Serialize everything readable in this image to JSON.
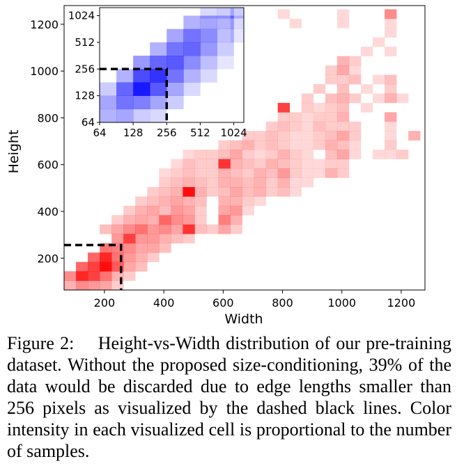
{
  "chart_data": {
    "type": "heatmap",
    "main": {
      "xlabel": "Width",
      "ylabel": "Height",
      "xlim": [
        64,
        1280
      ],
      "ylim": [
        64,
        1280
      ],
      "xticks": [
        200,
        400,
        600,
        800,
        1000,
        1200
      ],
      "yticks": [
        200,
        400,
        600,
        800,
        1000,
        1200
      ],
      "bin_size": 40,
      "cutoff": 256,
      "colormap_color": "#ff0000",
      "cells": [
        [
          84,
          84,
          0.3
        ],
        [
          124,
          84,
          0.45
        ],
        [
          164,
          84,
          0.4
        ],
        [
          204,
          84,
          0.35
        ],
        [
          244,
          84,
          0.2
        ],
        [
          84,
          124,
          0.45
        ],
        [
          124,
          124,
          0.85
        ],
        [
          164,
          124,
          0.75
        ],
        [
          204,
          124,
          0.55
        ],
        [
          244,
          124,
          0.3
        ],
        [
          284,
          124,
          0.2
        ],
        [
          124,
          164,
          0.6
        ],
        [
          164,
          164,
          0.75
        ],
        [
          204,
          164,
          0.95
        ],
        [
          244,
          164,
          0.65
        ],
        [
          284,
          164,
          0.35
        ],
        [
          324,
          164,
          0.25
        ],
        [
          164,
          204,
          0.6
        ],
        [
          204,
          204,
          0.85
        ],
        [
          244,
          204,
          0.55
        ],
        [
          284,
          204,
          0.4
        ],
        [
          324,
          204,
          0.3
        ],
        [
          364,
          204,
          0.2
        ],
        [
          204,
          244,
          0.55
        ],
        [
          244,
          244,
          0.5
        ],
        [
          284,
          244,
          0.45
        ],
        [
          324,
          244,
          0.35
        ],
        [
          364,
          244,
          0.35
        ],
        [
          404,
          244,
          0.25
        ],
        [
          244,
          284,
          0.4
        ],
        [
          284,
          284,
          0.75
        ],
        [
          324,
          284,
          0.4
        ],
        [
          364,
          284,
          0.4
        ],
        [
          404,
          284,
          0.3
        ],
        [
          444,
          284,
          0.25
        ],
        [
          484,
          284,
          0.2
        ],
        [
          204,
          324,
          0.25
        ],
        [
          244,
          324,
          0.35
        ],
        [
          284,
          324,
          0.45
        ],
        [
          324,
          324,
          0.55
        ],
        [
          364,
          324,
          0.4
        ],
        [
          404,
          324,
          0.45
        ],
        [
          444,
          324,
          0.35
        ],
        [
          484,
          324,
          0.8
        ],
        [
          524,
          324,
          0.25
        ],
        [
          564,
          324,
          0.2
        ],
        [
          604,
          324,
          0.35
        ],
        [
          644,
          324,
          0.2
        ],
        [
          244,
          364,
          0.2
        ],
        [
          284,
          364,
          0.3
        ],
        [
          324,
          364,
          0.35
        ],
        [
          364,
          364,
          0.3
        ],
        [
          404,
          364,
          0.6
        ],
        [
          444,
          364,
          0.45
        ],
        [
          484,
          364,
          0.4
        ],
        [
          524,
          364,
          0.2
        ],
        [
          604,
          364,
          0.5
        ],
        [
          644,
          364,
          0.3
        ],
        [
          284,
          404,
          0.2
        ],
        [
          324,
          404,
          0.3
        ],
        [
          364,
          404,
          0.35
        ],
        [
          404,
          404,
          0.25
        ],
        [
          444,
          404,
          0.4
        ],
        [
          484,
          404,
          0.35
        ],
        [
          524,
          404,
          0.2
        ],
        [
          604,
          404,
          0.35
        ],
        [
          644,
          404,
          0.4
        ],
        [
          684,
          404,
          0.15
        ],
        [
          324,
          444,
          0.2
        ],
        [
          364,
          444,
          0.25
        ],
        [
          404,
          444,
          0.3
        ],
        [
          444,
          444,
          0.35
        ],
        [
          484,
          444,
          0.3
        ],
        [
          524,
          444,
          0.25
        ],
        [
          604,
          444,
          0.3
        ],
        [
          644,
          444,
          0.3
        ],
        [
          684,
          444,
          0.2
        ],
        [
          724,
          444,
          0.15
        ],
        [
          364,
          484,
          0.2
        ],
        [
          404,
          484,
          0.25
        ],
        [
          444,
          484,
          0.3
        ],
        [
          484,
          484,
          0.95
        ],
        [
          524,
          484,
          0.3
        ],
        [
          564,
          484,
          0.2
        ],
        [
          604,
          484,
          0.25
        ],
        [
          644,
          484,
          0.35
        ],
        [
          684,
          484,
          0.25
        ],
        [
          724,
          484,
          0.3
        ],
        [
          764,
          484,
          0.2
        ],
        [
          804,
          484,
          0.25
        ],
        [
          844,
          484,
          0.15
        ],
        [
          404,
          524,
          0.2
        ],
        [
          444,
          524,
          0.25
        ],
        [
          484,
          524,
          0.3
        ],
        [
          524,
          524,
          0.25
        ],
        [
          564,
          524,
          0.2
        ],
        [
          604,
          524,
          0.3
        ],
        [
          644,
          524,
          0.3
        ],
        [
          684,
          524,
          0.25
        ],
        [
          724,
          524,
          0.3
        ],
        [
          764,
          524,
          0.2
        ],
        [
          804,
          524,
          0.3
        ],
        [
          844,
          524,
          0.15
        ],
        [
          884,
          524,
          0.15
        ],
        [
          404,
          564,
          0.15
        ],
        [
          444,
          564,
          0.2
        ],
        [
          484,
          564,
          0.25
        ],
        [
          524,
          564,
          0.2
        ],
        [
          564,
          564,
          0.2
        ],
        [
          604,
          564,
          0.3
        ],
        [
          644,
          564,
          0.25
        ],
        [
          684,
          564,
          0.2
        ],
        [
          724,
          564,
          0.3
        ],
        [
          764,
          564,
          0.25
        ],
        [
          804,
          564,
          0.4
        ],
        [
          844,
          564,
          0.2
        ],
        [
          884,
          564,
          0.15
        ],
        [
          924,
          564,
          0.15
        ],
        [
          964,
          564,
          0.3
        ],
        [
          1004,
          564,
          0.2
        ],
        [
          444,
          604,
          0.15
        ],
        [
          484,
          604,
          0.25
        ],
        [
          524,
          604,
          0.2
        ],
        [
          564,
          604,
          0.2
        ],
        [
          604,
          604,
          0.8
        ],
        [
          644,
          604,
          0.3
        ],
        [
          684,
          604,
          0.25
        ],
        [
          724,
          604,
          0.2
        ],
        [
          764,
          604,
          0.3
        ],
        [
          804,
          604,
          0.25
        ],
        [
          844,
          604,
          0.2
        ],
        [
          884,
          604,
          0.15
        ],
        [
          924,
          604,
          0.15
        ],
        [
          964,
          604,
          0.2
        ],
        [
          1004,
          604,
          0.2
        ],
        [
          484,
          644,
          0.15
        ],
        [
          524,
          644,
          0.2
        ],
        [
          564,
          644,
          0.2
        ],
        [
          604,
          644,
          0.25
        ],
        [
          644,
          644,
          0.35
        ],
        [
          684,
          644,
          0.2
        ],
        [
          724,
          644,
          0.15
        ],
        [
          764,
          644,
          0.2
        ],
        [
          804,
          644,
          0.3
        ],
        [
          844,
          644,
          0.2
        ],
        [
          884,
          644,
          0.15
        ],
        [
          964,
          644,
          0.25
        ],
        [
          1004,
          644,
          0.35
        ],
        [
          1044,
          644,
          0.15
        ],
        [
          1124,
          644,
          0.15
        ],
        [
          1164,
          644,
          0.15
        ],
        [
          1204,
          644,
          0.2
        ],
        [
          604,
          684,
          0.2
        ],
        [
          644,
          684,
          0.25
        ],
        [
          684,
          684,
          0.3
        ],
        [
          724,
          684,
          0.2
        ],
        [
          764,
          684,
          0.25
        ],
        [
          804,
          684,
          0.2
        ],
        [
          844,
          684,
          0.15
        ],
        [
          884,
          684,
          0.15
        ],
        [
          924,
          684,
          0.2
        ],
        [
          964,
          684,
          0.3
        ],
        [
          1004,
          684,
          0.25
        ],
        [
          1044,
          684,
          0.15
        ],
        [
          1164,
          684,
          0.2
        ],
        [
          684,
          724,
          0.2
        ],
        [
          724,
          724,
          0.2
        ],
        [
          764,
          724,
          0.25
        ],
        [
          804,
          724,
          0.2
        ],
        [
          844,
          724,
          0.15
        ],
        [
          884,
          724,
          0.15
        ],
        [
          924,
          724,
          0.2
        ],
        [
          964,
          724,
          0.25
        ],
        [
          1004,
          724,
          0.35
        ],
        [
          1044,
          724,
          0.2
        ],
        [
          1164,
          724,
          0.15
        ],
        [
          1244,
          724,
          0.3
        ],
        [
          764,
          764,
          0.2
        ],
        [
          804,
          764,
          0.25
        ],
        [
          844,
          764,
          0.2
        ],
        [
          884,
          764,
          0.15
        ],
        [
          924,
          764,
          0.25
        ],
        [
          964,
          764,
          0.2
        ],
        [
          1004,
          764,
          0.2
        ],
        [
          1044,
          764,
          0.2
        ],
        [
          1164,
          764,
          0.15
        ],
        [
          804,
          804,
          0.2
        ],
        [
          844,
          804,
          0.2
        ],
        [
          884,
          804,
          0.15
        ],
        [
          924,
          804,
          0.2
        ],
        [
          964,
          804,
          0.2
        ],
        [
          1004,
          804,
          0.3
        ],
        [
          1164,
          804,
          0.35
        ],
        [
          804,
          844,
          0.75
        ],
        [
          884,
          844,
          0.2
        ],
        [
          924,
          844,
          0.15
        ],
        [
          964,
          844,
          0.2
        ],
        [
          1004,
          844,
          0.25
        ],
        [
          1084,
          844,
          0.15
        ],
        [
          884,
          884,
          0.2
        ],
        [
          964,
          884,
          0.25
        ],
        [
          1004,
          884,
          0.3
        ],
        [
          1044,
          884,
          0.2
        ],
        [
          1124,
          884,
          0.15
        ],
        [
          1164,
          884,
          0.3
        ],
        [
          1204,
          884,
          0.15
        ],
        [
          924,
          924,
          0.2
        ],
        [
          1004,
          924,
          0.25
        ],
        [
          1084,
          924,
          0.15
        ],
        [
          1164,
          924,
          0.2
        ],
        [
          964,
          964,
          0.2
        ],
        [
          1004,
          964,
          0.2
        ],
        [
          1044,
          964,
          0.25
        ],
        [
          1124,
          964,
          0.15
        ],
        [
          1164,
          964,
          0.25
        ],
        [
          1004,
          1004,
          0.35
        ],
        [
          964,
          1004,
          0.2
        ],
        [
          1044,
          1004,
          0.15
        ],
        [
          1044,
          1044,
          0.2
        ],
        [
          1004,
          1044,
          0.3
        ],
        [
          1084,
          1084,
          0.15
        ],
        [
          1164,
          1084,
          0.15
        ],
        [
          1124,
          1124,
          0.15
        ],
        [
          1164,
          1164,
          0.15
        ],
        [
          844,
          1204,
          0.15
        ],
        [
          1004,
          1204,
          0.15
        ],
        [
          1164,
          1204,
          0.15
        ],
        [
          804,
          1244,
          0.15
        ],
        [
          1004,
          1244,
          0.15
        ],
        [
          1164,
          1244,
          0.45
        ]
      ]
    },
    "inset": {
      "scale": "log2",
      "xlim_log2": [
        6,
        10.3
      ],
      "ylim_log2": [
        6,
        10.3
      ],
      "xticks": [
        64,
        128,
        256,
        512,
        1024
      ],
      "yticks": [
        64,
        128,
        256,
        512,
        1024
      ],
      "xtick_labels": [
        "64",
        "128",
        "256",
        "512",
        "1024"
      ],
      "ytick_labels": [
        "64",
        "128",
        "256",
        "512",
        "1024"
      ],
      "cutoff": 256,
      "colormap_color": "#0000ff",
      "cells": [
        [
          6.25,
          6.25,
          0.3
        ],
        [
          6.75,
          6.25,
          0.35
        ],
        [
          7.25,
          6.25,
          0.2
        ],
        [
          7.75,
          6.25,
          0.15
        ],
        [
          6.25,
          6.75,
          0.35
        ],
        [
          6.75,
          6.75,
          0.55
        ],
        [
          7.25,
          6.75,
          0.5
        ],
        [
          7.75,
          6.75,
          0.35
        ],
        [
          8.25,
          6.75,
          0.2
        ],
        [
          6.25,
          7.25,
          0.2
        ],
        [
          6.75,
          7.25,
          0.6
        ],
        [
          7.25,
          7.25,
          0.9
        ],
        [
          7.75,
          7.25,
          0.65
        ],
        [
          8.25,
          7.25,
          0.35
        ],
        [
          8.75,
          7.25,
          0.15
        ],
        [
          6.75,
          7.75,
          0.3
        ],
        [
          7.25,
          7.75,
          0.7
        ],
        [
          7.75,
          7.75,
          0.8
        ],
        [
          8.25,
          7.75,
          0.55
        ],
        [
          8.75,
          7.75,
          0.3
        ],
        [
          9.25,
          7.75,
          0.15
        ],
        [
          7.25,
          8.25,
          0.4
        ],
        [
          7.75,
          8.25,
          0.6
        ],
        [
          8.25,
          8.25,
          0.65
        ],
        [
          8.75,
          8.25,
          0.45
        ],
        [
          9.25,
          8.25,
          0.25
        ],
        [
          9.75,
          8.25,
          0.1
        ],
        [
          7.75,
          8.75,
          0.3
        ],
        [
          8.25,
          8.75,
          0.55
        ],
        [
          8.75,
          8.75,
          0.6
        ],
        [
          9.25,
          8.75,
          0.4
        ],
        [
          9.75,
          8.75,
          0.2
        ],
        [
          8.25,
          9.25,
          0.35
        ],
        [
          8.75,
          9.25,
          0.55
        ],
        [
          9.25,
          9.25,
          0.45
        ],
        [
          9.75,
          9.25,
          0.25
        ],
        [
          10.15,
          9.25,
          0.1
        ],
        [
          8.75,
          9.75,
          0.3
        ],
        [
          9.25,
          9.75,
          0.35
        ],
        [
          9.75,
          9.75,
          0.3
        ],
        [
          10.15,
          9.75,
          0.15
        ],
        [
          9.25,
          10.15,
          0.15
        ],
        [
          9.75,
          10.15,
          0.2
        ],
        [
          10.15,
          10.15,
          0.2
        ]
      ]
    }
  },
  "caption": {
    "text": "Figure 2:  Height-vs-Width distribution of our pre-training dataset. Without the proposed size-conditioning, 39% of the data would be discarded due to edge lengths smaller than 256 pixels as visualized by the dashed black lines. Color intensity in each visualized cell is proportional to the number of samples."
  }
}
